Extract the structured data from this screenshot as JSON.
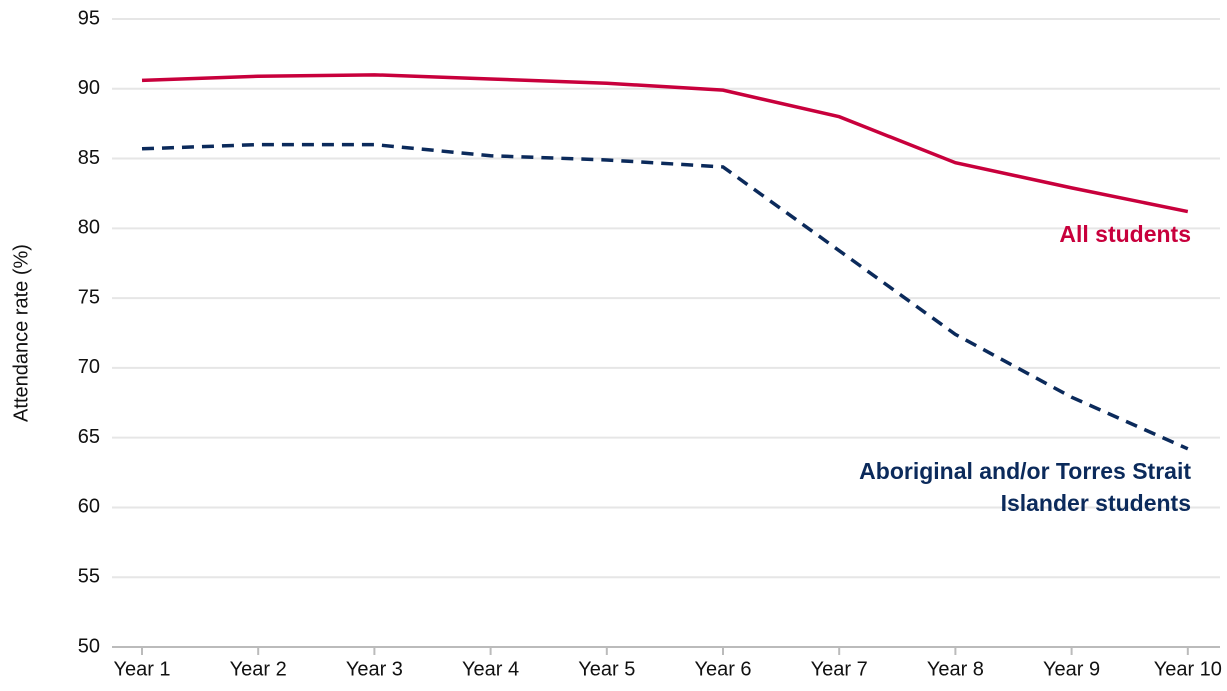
{
  "chart_data": {
    "type": "line",
    "y_label": "Attendance rate (%)",
    "categories": [
      "Year 1",
      "Year 2",
      "Year 3",
      "Year 4",
      "Year 5",
      "Year 6",
      "Year 7",
      "Year 8",
      "Year 9",
      "Year 10"
    ],
    "series": [
      {
        "name": "All students",
        "color": "#c8003c",
        "line_style": "solid",
        "values": [
          90.6,
          90.9,
          91.0,
          90.7,
          90.4,
          89.9,
          88.0,
          84.7,
          82.9,
          81.2
        ]
      },
      {
        "name": "Aboriginal and/or Torres Strait Islander students",
        "color": "#0b2a5b",
        "line_style": "dashed",
        "values": [
          85.7,
          86.0,
          86.0,
          85.2,
          84.9,
          84.4,
          78.4,
          72.4,
          67.9,
          64.2
        ]
      }
    ],
    "ylim": [
      50,
      95
    ],
    "yticks": [
      50,
      55,
      60,
      65,
      70,
      75,
      80,
      85,
      90,
      95
    ],
    "grid": true
  }
}
